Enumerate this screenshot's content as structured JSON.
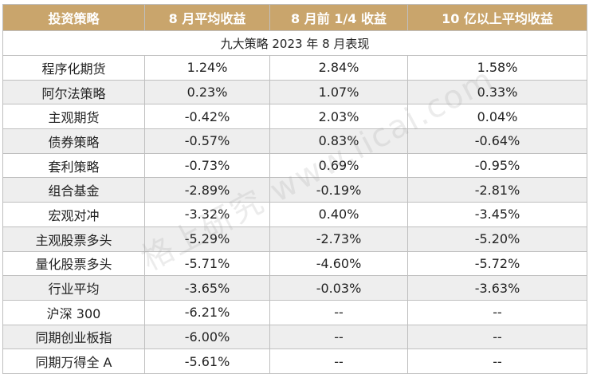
{
  "title": "九大策略 2023 年 8 月表现",
  "headers": [
    "投资策略",
    "8 月平均收益",
    "8 月前 1/4 收益",
    "10 亿以上平均收益"
  ],
  "rows": [
    [
      "程序化期货",
      "1.24%",
      "2.84%",
      "1.58%"
    ],
    [
      "阿尔法策略",
      "0.23%",
      "1.07%",
      "0.33%"
    ],
    [
      "主观期货",
      "-0.42%",
      "2.03%",
      "0.04%"
    ],
    [
      "债券策略",
      "-0.57%",
      "0.83%",
      "-0.64%"
    ],
    [
      "套利策略",
      "-0.73%",
      "0.69%",
      "-0.95%"
    ],
    [
      "组合基金",
      "-2.89%",
      "-0.19%",
      "-2.81%"
    ],
    [
      "宏观对冲",
      "-3.32%",
      "0.40%",
      "-3.45%"
    ],
    [
      "主观股票多头",
      "-5.29%",
      "-2.73%",
      "-5.20%"
    ],
    [
      "量化股票多头",
      "-5.71%",
      "-4.60%",
      "-5.72%"
    ],
    [
      "行业平均",
      "-3.65%",
      "-0.03%",
      "-3.63%"
    ],
    [
      "沪深 300",
      "-6.21%",
      "--",
      "--"
    ],
    [
      "同期创业板指",
      "-6.00%",
      "--",
      "--"
    ],
    [
      "同期万得全 A",
      "-5.61%",
      "--",
      "--"
    ]
  ],
  "watermark": "格上研究 www.licai.com",
  "colors": {
    "header_bg": "#c9a56c",
    "stripe_bg": "#eeeeee"
  }
}
